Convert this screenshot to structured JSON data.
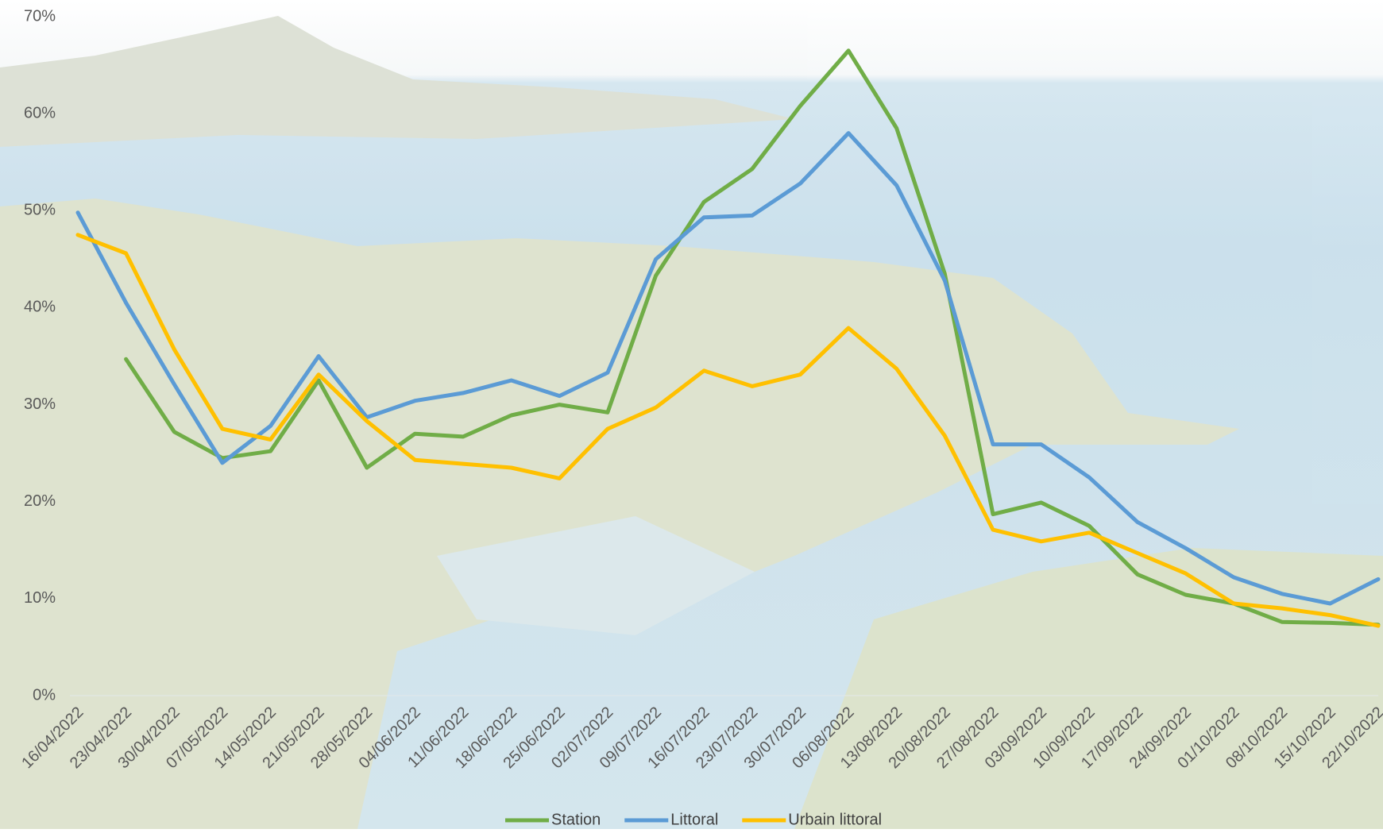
{
  "chart_data": {
    "type": "line",
    "categories": [
      "16/04/2022",
      "23/04/2022",
      "30/04/2022",
      "07/05/2022",
      "14/05/2022",
      "21/05/2022",
      "28/05/2022",
      "04/06/2022",
      "11/06/2022",
      "18/06/2022",
      "25/06/2022",
      "02/07/2022",
      "09/07/2022",
      "16/07/2022",
      "23/07/2022",
      "30/07/2022",
      "06/08/2022",
      "13/08/2022",
      "20/08/2022",
      "27/08/2022",
      "03/09/2022",
      "10/09/2022",
      "17/09/2022",
      "24/09/2022",
      "01/10/2022",
      "08/10/2022",
      "15/10/2022",
      "22/10/2022"
    ],
    "series": [
      {
        "name": "Station",
        "color": "#70ad47",
        "values": [
          null,
          34.7,
          27.2,
          24.5,
          25.2,
          32.5,
          23.5,
          27,
          26.7,
          28.9,
          30,
          29.2,
          43.3,
          50.9,
          54.3,
          60.8,
          66.5,
          58.5,
          43.5,
          18.7,
          19.9,
          17.5,
          12.5,
          10.4,
          9.5,
          7.6,
          7.5,
          7.3
        ]
      },
      {
        "name": "Littoral",
        "color": "#5b9bd5",
        "values": [
          49.8,
          40.5,
          32.1,
          24,
          27.8,
          35,
          28.7,
          30.4,
          31.2,
          32.5,
          30.9,
          33.3,
          45,
          49.3,
          49.5,
          52.8,
          58,
          52.6,
          42.8,
          25.9,
          25.9,
          22.5,
          17.9,
          15.2,
          12.2,
          10.5,
          9.5,
          12
        ]
      },
      {
        "name": "Urbain littoral",
        "color": "#ffc000",
        "values": [
          47.5,
          45.6,
          35.7,
          27.5,
          26.4,
          33.1,
          28.3,
          24.3,
          23.9,
          23.5,
          22.4,
          27.5,
          29.7,
          33.5,
          31.9,
          33.1,
          37.9,
          33.7,
          26.8,
          17.1,
          15.9,
          16.8,
          14.7,
          12.6,
          9.5,
          9,
          8.3,
          7.2
        ]
      }
    ],
    "ylim": [
      0,
      70
    ],
    "yticks": [
      {
        "value": 0,
        "label": "0%"
      },
      {
        "value": 10,
        "label": "10%"
      },
      {
        "value": 20,
        "label": "20%"
      },
      {
        "value": 30,
        "label": "30%"
      },
      {
        "value": 40,
        "label": "40%"
      },
      {
        "value": 50,
        "label": "50%"
      },
      {
        "value": 60,
        "label": "60%"
      },
      {
        "value": 70,
        "label": "70%"
      }
    ],
    "legend": "bottom"
  }
}
